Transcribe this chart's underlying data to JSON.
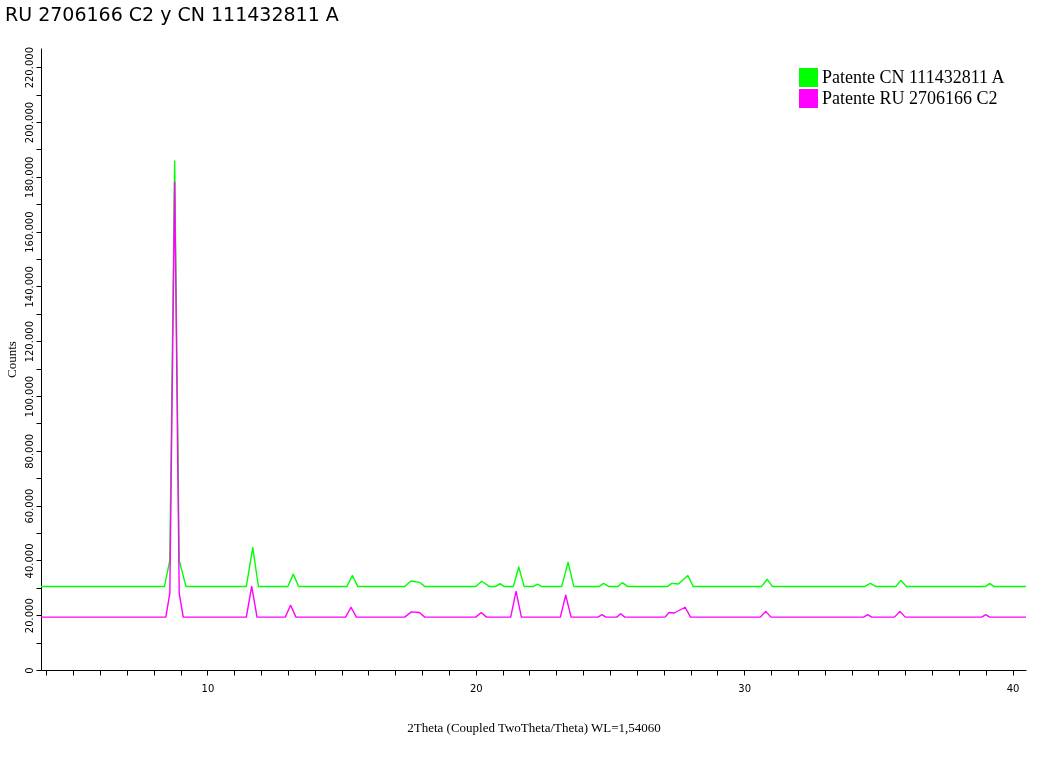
{
  "chart_data": {
    "type": "line",
    "title": "RU 2706166 C2 y CN 111432811 A",
    "xlabel": "2Theta (Coupled TwoTheta/Theta) WL=1,54060",
    "ylabel": "Counts",
    "xlim": [
      3.8,
      40.5
    ],
    "xticks": [
      {
        "value": 4,
        "label": null
      },
      {
        "value": 5,
        "label": null
      },
      {
        "value": 6,
        "label": null
      },
      {
        "value": 7,
        "label": null
      },
      {
        "value": 8,
        "label": null
      },
      {
        "value": 9,
        "label": null
      },
      10,
      {
        "value": 11,
        "label": null
      },
      {
        "value": 12,
        "label": null
      },
      {
        "value": 13,
        "label": null
      },
      {
        "value": 14,
        "label": null
      },
      {
        "value": 15,
        "label": null
      },
      {
        "value": 16,
        "label": null
      },
      {
        "value": 17,
        "label": null
      },
      {
        "value": 18,
        "label": null
      },
      {
        "value": 19,
        "label": null
      },
      20,
      {
        "value": 21,
        "label": null
      },
      {
        "value": 22,
        "label": null
      },
      {
        "value": 23,
        "label": null
      },
      {
        "value": 24,
        "label": null
      },
      {
        "value": 25,
        "label": null
      },
      {
        "value": 26,
        "label": null
      },
      {
        "value": 27,
        "label": null
      },
      {
        "value": 28,
        "label": null
      },
      {
        "value": 29,
        "label": null
      },
      30,
      {
        "value": 31,
        "label": null
      },
      {
        "value": 32,
        "label": null
      },
      {
        "value": 33,
        "label": null
      },
      {
        "value": 34,
        "label": null
      },
      {
        "value": 35,
        "label": null
      },
      {
        "value": 36,
        "label": null
      },
      {
        "value": 37,
        "label": null
      },
      {
        "value": 38,
        "label": null
      },
      {
        "value": 39,
        "label": null
      },
      40
    ],
    "ylim": [
      0,
      227000
    ],
    "yticks": [
      {
        "value": 0,
        "label": "0"
      },
      {
        "value": 10000,
        "label": null
      },
      {
        "value": 20000,
        "label": "20.000"
      },
      {
        "value": 30000,
        "label": null
      },
      {
        "value": 40000,
        "label": "40.000"
      },
      {
        "value": 50000,
        "label": null
      },
      {
        "value": 60000,
        "label": "60.000"
      },
      {
        "value": 70000,
        "label": null
      },
      {
        "value": 80000,
        "label": "80.000"
      },
      {
        "value": 90000,
        "label": null
      },
      {
        "value": 100000,
        "label": "100.000"
      },
      {
        "value": 110000,
        "label": null
      },
      {
        "value": 120000,
        "label": "120.000"
      },
      {
        "value": 130000,
        "label": null
      },
      {
        "value": 140000,
        "label": "140.000"
      },
      {
        "value": 150000,
        "label": null
      },
      {
        "value": 160000,
        "label": "160.000"
      },
      {
        "value": 170000,
        "label": null
      },
      {
        "value": 180000,
        "label": "180.000"
      },
      {
        "value": 190000,
        "label": null
      },
      {
        "value": 200000,
        "label": "200.000"
      },
      {
        "value": 210000,
        "label": null
      },
      {
        "value": 220000,
        "label": "220.000"
      }
    ],
    "legend": "top right",
    "grid": false,
    "marker": "none",
    "series": [
      {
        "name": "Patente CN 111432811 A",
        "color": "#00ff00",
        "x": [
          3.8,
          8.4,
          8.6,
          8.78,
          8.95,
          9.2,
          11.45,
          11.69,
          11.9,
          13.0,
          13.2,
          13.4,
          15.2,
          15.4,
          15.6,
          17.35,
          17.58,
          17.9,
          18.1,
          20.0,
          20.22,
          20.5,
          20.75,
          20.9,
          21.05,
          21.4,
          21.6,
          21.8,
          22.15,
          22.3,
          22.45,
          23.2,
          23.44,
          23.65,
          24.6,
          24.76,
          24.95,
          25.3,
          25.46,
          25.65,
          27.15,
          27.3,
          27.55,
          27.9,
          28.1,
          30.65,
          30.86,
          31.05,
          34.5,
          34.7,
          34.9,
          35.65,
          35.84,
          36.05,
          39.0,
          39.15,
          39.3,
          40.5
        ],
        "values": [
          30500,
          30500,
          40000,
          185800,
          40000,
          30500,
          30500,
          44700,
          30500,
          30500,
          35000,
          30500,
          30500,
          34500,
          30500,
          30500,
          32500,
          32000,
          30500,
          30500,
          32400,
          30500,
          30500,
          31500,
          30500,
          30500,
          37600,
          30500,
          30500,
          31300,
          30500,
          30500,
          39300,
          30500,
          30500,
          31600,
          30500,
          30500,
          31900,
          30500,
          30500,
          31600,
          31400,
          34500,
          30500,
          30500,
          33100,
          30500,
          30500,
          31600,
          30500,
          30500,
          32700,
          30500,
          30500,
          31600,
          30500,
          30500
        ]
      },
      {
        "name": "Patente RU 2706166 C2",
        "color": "#ff00ff",
        "x": [
          3.8,
          8.45,
          8.6,
          8.78,
          8.95,
          9.1,
          11.45,
          11.65,
          11.85,
          12.9,
          13.1,
          13.3,
          15.15,
          15.35,
          15.55,
          17.35,
          17.6,
          17.9,
          18.1,
          20.0,
          20.2,
          20.4,
          21.3,
          21.5,
          21.7,
          23.15,
          23.35,
          23.55,
          24.55,
          24.7,
          24.85,
          25.25,
          25.4,
          25.55,
          27.05,
          27.2,
          27.4,
          27.8,
          28.0,
          30.6,
          30.8,
          31.0,
          34.45,
          34.6,
          34.75,
          35.6,
          35.8,
          36.0,
          38.85,
          39.0,
          39.15,
          40.5
        ],
        "values": [
          19300,
          19300,
          28000,
          178000,
          28000,
          19300,
          19300,
          30500,
          19300,
          19300,
          23600,
          19300,
          19300,
          22900,
          19300,
          19300,
          21200,
          21000,
          19300,
          19300,
          21000,
          19300,
          19300,
          28700,
          19300,
          19300,
          27300,
          19300,
          19300,
          20200,
          19300,
          19300,
          20500,
          19300,
          19300,
          21000,
          20800,
          22900,
          19300,
          19300,
          21400,
          19300,
          19300,
          20200,
          19300,
          19300,
          21400,
          19300,
          19300,
          20200,
          19300,
          19300
        ]
      }
    ]
  }
}
